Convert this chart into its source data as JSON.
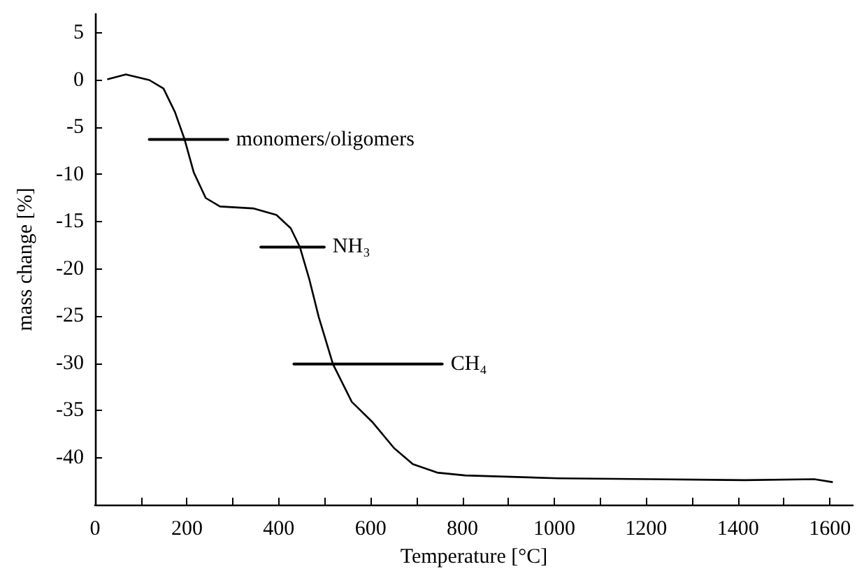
{
  "chart_data": {
    "type": "line",
    "xlabel": "Temperature [°C]",
    "ylabel": "mass change [%]",
    "xlim": [
      0,
      1650
    ],
    "ylim": [
      -45,
      7
    ],
    "xticks": [
      0,
      {
        "value": 100,
        "label": null
      },
      200,
      {
        "value": 300,
        "label": null
      },
      400,
      {
        "value": 500,
        "label": null
      },
      600,
      {
        "value": 700,
        "label": null
      },
      800,
      {
        "value": 900,
        "label": null
      },
      1000,
      {
        "value": 1100,
        "label": null
      },
      1200,
      {
        "value": 1300,
        "label": null
      },
      1400,
      {
        "value": 1500,
        "label": null
      },
      1600
    ],
    "yticks": [
      5,
      0,
      -5,
      -10,
      -15,
      -20,
      -25,
      -30,
      -35,
      -40
    ],
    "grid": false,
    "legend": false,
    "marker": "none",
    "line_style": "solid",
    "series": [
      {
        "color": "#000000",
        "x": [
          28,
          67,
          118,
          149,
          174,
          195,
          215,
          241,
          272,
          344,
          395,
          426,
          446,
          467,
          487,
          518,
          559,
          605,
          651,
          692,
          745,
          806,
          1009,
          1212,
          1415,
          1566,
          1605
        ],
        "values": [
          0.1,
          0.6,
          0,
          -0.9,
          -3.4,
          -6.3,
          -9.8,
          -12.5,
          -13.4,
          -13.6,
          -14.3,
          -15.7,
          -17.7,
          -21.2,
          -25.1,
          -30.1,
          -34.1,
          -36.3,
          -39,
          -40.7,
          -41.6,
          -41.9,
          -42.2,
          -42.3,
          -42.4,
          -42.3,
          -42.6
        ]
      },
      {
        "name": "monomers/oligomers",
        "color": "#000000",
        "x": [
          118,
          289
        ],
        "values": [
          -6.3,
          -6.3
        ]
      },
      {
        "name": "NH₃",
        "color": "#000000",
        "x": [
          361,
          499
        ],
        "values": [
          -17.7,
          -17.7
        ]
      },
      {
        "name": "CH₄",
        "color": "#000000",
        "x": [
          433,
          756
        ],
        "values": [
          -30.1,
          -30.1
        ]
      }
    ]
  }
}
